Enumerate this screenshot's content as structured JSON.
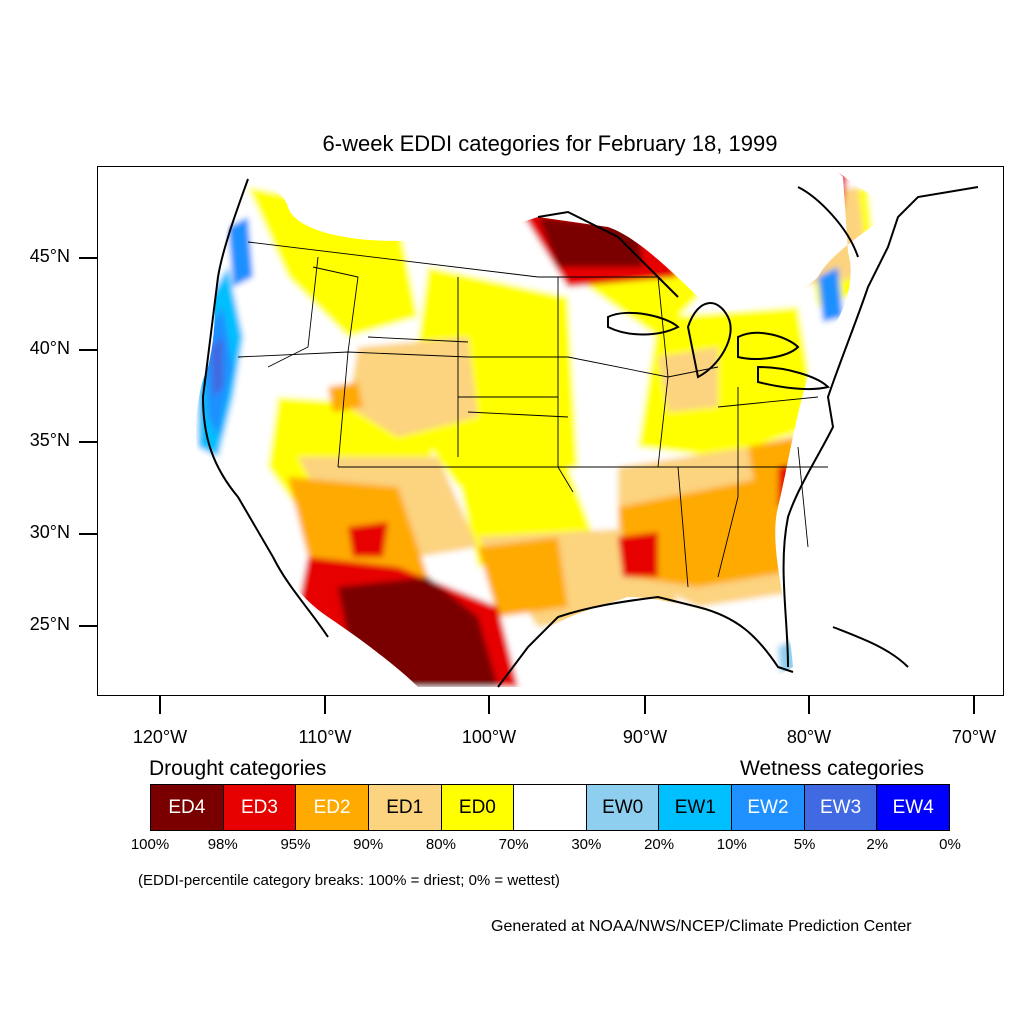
{
  "title": "6-week EDDI categories for February 18, 1999",
  "latitude_labels": [
    "45°N",
    "40°N",
    "35°N",
    "30°N",
    "25°N"
  ],
  "longitude_labels": [
    "120°W",
    "110°W",
    "100°W",
    "90°W",
    "80°W",
    "70°W"
  ],
  "legend": {
    "drought_heading": "Drought categories",
    "wetness_heading": "Wetness categories",
    "categories": [
      {
        "label": "ED4",
        "color": "#7a0000",
        "text_color": "#ffffff"
      },
      {
        "label": "ED3",
        "color": "#e60000",
        "text_color": "#ffffff"
      },
      {
        "label": "ED2",
        "color": "#ffaa00",
        "text_color": "#ffffff"
      },
      {
        "label": "ED1",
        "color": "#fcd37f",
        "text_color": "#000000"
      },
      {
        "label": "ED0",
        "color": "#ffff00",
        "text_color": "#000000"
      },
      {
        "label": "",
        "color": "#ffffff",
        "text_color": "#000000"
      },
      {
        "label": "EW0",
        "color": "#8ecfef",
        "text_color": "#000000"
      },
      {
        "label": "EW1",
        "color": "#00bfff",
        "text_color": "#000000"
      },
      {
        "label": "EW2",
        "color": "#1e90ff",
        "text_color": "#ffffff"
      },
      {
        "label": "EW3",
        "color": "#4169e1",
        "text_color": "#ffffff"
      },
      {
        "label": "EW4",
        "color": "#0000ff",
        "text_color": "#ffffff"
      }
    ],
    "percentile_breaks": [
      "100%",
      "98%",
      "95%",
      "90%",
      "80%",
      "70%",
      "30%",
      "20%",
      "10%",
      "5%",
      "2%",
      "0%"
    ],
    "breaks_note": "(EDDI-percentile category breaks: 100% = driest; 0% = wettest)"
  },
  "credit": "Generated at NOAA/NWS/NCEP/Climate Prediction Center"
}
